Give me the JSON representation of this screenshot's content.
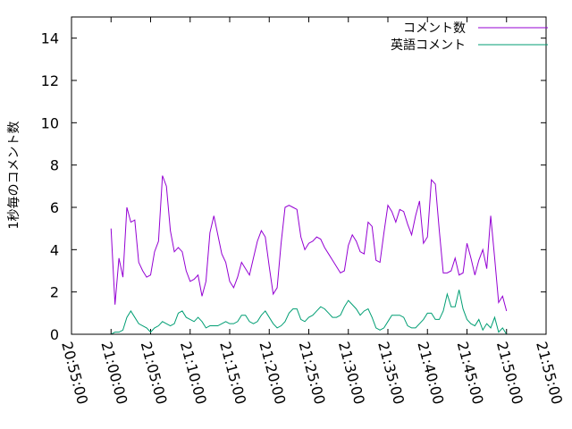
{
  "chart_data": {
    "type": "line",
    "title": "",
    "xlabel": "",
    "ylabel": "1秒毎のコメント数",
    "ylim": [
      0,
      15
    ],
    "yticks": [
      "0",
      "2",
      "4",
      "6",
      "8",
      "10",
      "12",
      "14"
    ],
    "xticks": [
      "20:55:00",
      "21:00:00",
      "21:05:00",
      "21:10:00",
      "21:15:00",
      "21:20:00",
      "21:25:00",
      "21:30:00",
      "21:35:00",
      "21:40:00",
      "21:45:00",
      "21:50:00",
      "21:55:00"
    ],
    "x_start": "21:00:00",
    "x_step_seconds": 30,
    "legend_position": "top-right",
    "grid": false,
    "series": [
      {
        "name": "コメント数",
        "color": "#9400d3",
        "values": [
          5.0,
          1.4,
          3.6,
          2.7,
          6.0,
          5.3,
          5.4,
          3.4,
          3.0,
          2.7,
          2.8,
          3.9,
          4.4,
          7.5,
          7.0,
          4.9,
          3.9,
          4.1,
          3.9,
          3.0,
          2.5,
          2.6,
          2.8,
          1.8,
          2.5,
          4.8,
          5.6,
          4.7,
          3.8,
          3.4,
          2.5,
          2.2,
          2.7,
          3.4,
          3.1,
          2.8,
          3.6,
          4.4,
          4.9,
          4.6,
          3.2,
          1.9,
          2.2,
          4.3,
          6.0,
          6.1,
          6.0,
          5.9,
          4.6,
          4.0,
          4.3,
          4.4,
          4.6,
          4.5,
          4.1,
          3.8,
          3.5,
          3.2,
          2.9,
          3.0,
          4.2,
          4.7,
          4.4,
          3.9,
          3.8,
          5.3,
          5.1,
          3.5,
          3.4,
          4.8,
          6.1,
          5.8,
          5.3,
          5.9,
          5.8,
          5.2,
          4.7,
          5.6,
          6.3,
          4.3,
          4.6,
          7.3,
          7.1,
          4.9,
          2.9,
          2.9,
          3.0,
          3.6,
          2.8,
          2.9,
          4.3,
          3.6,
          2.8,
          3.5,
          4.0,
          3.1,
          5.6,
          3.6,
          1.5,
          1.8,
          1.1
        ]
      },
      {
        "name": "英語コメント",
        "color": "#009e73",
        "values": [
          0.0,
          0.1,
          0.1,
          0.2,
          0.8,
          1.1,
          0.8,
          0.5,
          0.4,
          0.3,
          0.1,
          0.3,
          0.4,
          0.6,
          0.5,
          0.4,
          0.5,
          1.0,
          1.1,
          0.8,
          0.7,
          0.6,
          0.8,
          0.6,
          0.3,
          0.4,
          0.4,
          0.4,
          0.5,
          0.6,
          0.5,
          0.5,
          0.6,
          0.9,
          0.9,
          0.6,
          0.5,
          0.6,
          0.9,
          1.1,
          0.8,
          0.5,
          0.3,
          0.4,
          0.6,
          1.0,
          1.2,
          1.2,
          0.7,
          0.6,
          0.8,
          0.9,
          1.1,
          1.3,
          1.2,
          1.0,
          0.8,
          0.8,
          0.9,
          1.3,
          1.6,
          1.4,
          1.2,
          0.9,
          1.1,
          1.2,
          0.8,
          0.3,
          0.2,
          0.3,
          0.6,
          0.9,
          0.9,
          0.9,
          0.8,
          0.4,
          0.3,
          0.3,
          0.5,
          0.7,
          1.0,
          1.0,
          0.7,
          0.7,
          1.1,
          1.9,
          1.3,
          1.3,
          2.1,
          1.2,
          0.7,
          0.5,
          0.4,
          0.7,
          0.2,
          0.5,
          0.3,
          0.8,
          0.1,
          0.3,
          0.0
        ]
      }
    ]
  }
}
